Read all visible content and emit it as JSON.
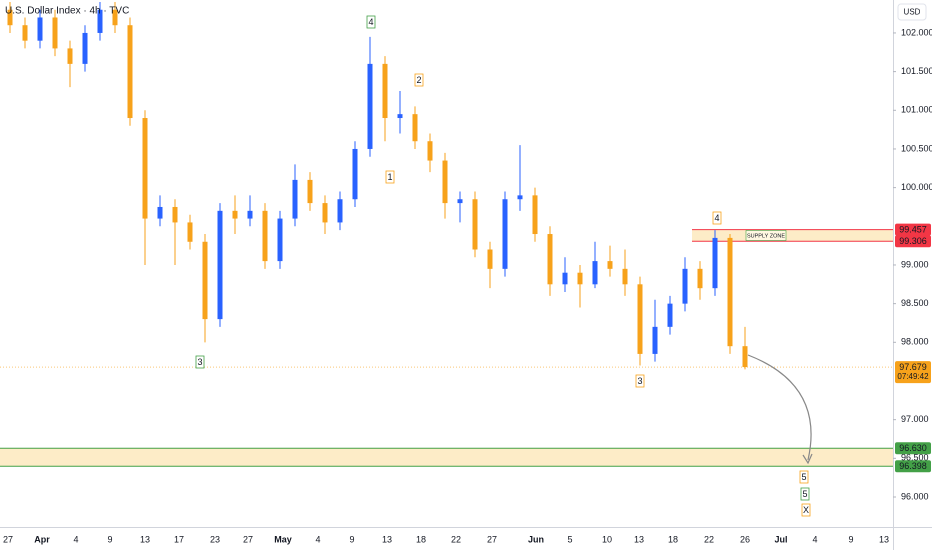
{
  "chart_data": {
    "type": "candlestick",
    "title": "U.S. Dollar Index · 4h · TVC",
    "currency": "USD",
    "up_color": "#2962ff",
    "down_color": "#f7a21b",
    "open": [
      102.3,
      102.1,
      101.9,
      102.2,
      101.8,
      101.6,
      102.0,
      102.3,
      102.1,
      100.9,
      99.6,
      99.75,
      99.55,
      99.3,
      98.3,
      99.7,
      99.6,
      99.7,
      99.05,
      99.6,
      100.1,
      99.8,
      99.55,
      99.85,
      100.5,
      101.6,
      100.9,
      100.95,
      100.6,
      100.35,
      99.8,
      99.85,
      99.2,
      98.95,
      99.85,
      99.9,
      99.4,
      98.75,
      98.9,
      98.75,
      99.05,
      98.95,
      98.75,
      97.85,
      98.2,
      98.5,
      98.95,
      98.7,
      99.35,
      97.95
    ],
    "high": [
      102.4,
      102.2,
      102.3,
      102.3,
      101.9,
      102.1,
      102.4,
      102.4,
      102.2,
      101.0,
      99.9,
      99.85,
      99.65,
      99.4,
      99.8,
      99.9,
      99.9,
      99.8,
      99.7,
      100.3,
      100.2,
      99.9,
      99.95,
      100.6,
      101.95,
      101.7,
      101.25,
      101.05,
      100.7,
      100.45,
      99.95,
      99.95,
      99.3,
      99.95,
      100.55,
      100.0,
      99.5,
      99.1,
      99.0,
      99.3,
      99.25,
      99.2,
      98.85,
      98.55,
      98.6,
      99.1,
      99.05,
      99.45,
      99.4,
      98.2
    ],
    "low": [
      102.0,
      101.8,
      101.8,
      101.7,
      101.3,
      101.5,
      101.9,
      102.0,
      100.8,
      99.0,
      99.5,
      99.0,
      99.2,
      98.0,
      98.2,
      99.4,
      99.5,
      98.95,
      98.95,
      99.5,
      99.7,
      99.4,
      99.45,
      99.75,
      100.4,
      100.6,
      100.7,
      100.5,
      100.2,
      99.6,
      99.55,
      99.1,
      98.7,
      98.85,
      99.7,
      99.3,
      98.6,
      98.65,
      98.45,
      98.7,
      98.85,
      98.6,
      97.7,
      97.75,
      98.1,
      98.4,
      98.55,
      98.6,
      97.85,
      97.65
    ],
    "close": [
      102.1,
      101.9,
      102.2,
      101.8,
      101.6,
      102.0,
      102.3,
      102.1,
      100.9,
      99.6,
      99.75,
      99.55,
      99.3,
      98.3,
      99.7,
      99.6,
      99.7,
      99.05,
      99.6,
      100.1,
      99.8,
      99.55,
      99.85,
      100.5,
      101.6,
      100.9,
      100.95,
      100.6,
      100.35,
      99.8,
      99.85,
      99.2,
      98.95,
      99.85,
      99.9,
      99.4,
      98.75,
      98.9,
      98.75,
      99.05,
      98.95,
      98.75,
      97.85,
      98.2,
      98.5,
      98.95,
      98.7,
      99.35,
      97.95,
      97.68
    ],
    "ylim": [
      95.806,
      102.426
    ],
    "yticks": [
      {
        "value": 102,
        "label": "102.000"
      },
      {
        "value": 101.5,
        "label": "101.500"
      },
      {
        "value": 101,
        "label": "101.000"
      },
      {
        "value": 100.5,
        "label": "100.500"
      },
      {
        "value": 100,
        "label": "100.000"
      },
      {
        "value": 99,
        "label": "99.000"
      },
      {
        "value": 98.5,
        "label": "98.500"
      },
      {
        "value": 98,
        "label": "98.000"
      },
      {
        "value": 97,
        "label": "97.000"
      },
      {
        "value": 96.5,
        "label": "96.500"
      },
      {
        "value": 96,
        "label": "96.000"
      }
    ],
    "xticks": [
      "27",
      "Apr",
      "4",
      "9",
      "13",
      "17",
      "23",
      "27",
      "May",
      "4",
      "9",
      "13",
      "18",
      "22",
      "27",
      "Jun",
      "5",
      "10",
      "13",
      "18",
      "22",
      "26",
      "Jul",
      "4",
      "9",
      "13"
    ],
    "last_price": 97.679,
    "countdown": "07:49:42",
    "zones": [
      {
        "label": "SUPPLY ZONE",
        "top": 99.457,
        "bottom": 99.306,
        "color": "#f23645"
      },
      {
        "top": {
          "value": 96.63,
          "label": "96.630"
        },
        "bottom": {
          "value": 96.398,
          "label": "96.398"
        },
        "color": "#43a047"
      }
    ],
    "annotations": [
      {
        "text": "4",
        "color": "#43a047"
      },
      {
        "text": "2",
        "color": "#f7a21b"
      },
      {
        "text": "1",
        "color": "#f7a21b"
      },
      {
        "text": "3",
        "color": "#43a047"
      },
      {
        "text": "4",
        "color": "#f7a21b"
      },
      {
        "text": "3",
        "color": "#f7a21b"
      },
      {
        "text": "5",
        "color": "#f7a21b"
      },
      {
        "text": "5",
        "color": "#43a047"
      },
      {
        "text": "X",
        "color": "#f7a21b"
      }
    ]
  }
}
